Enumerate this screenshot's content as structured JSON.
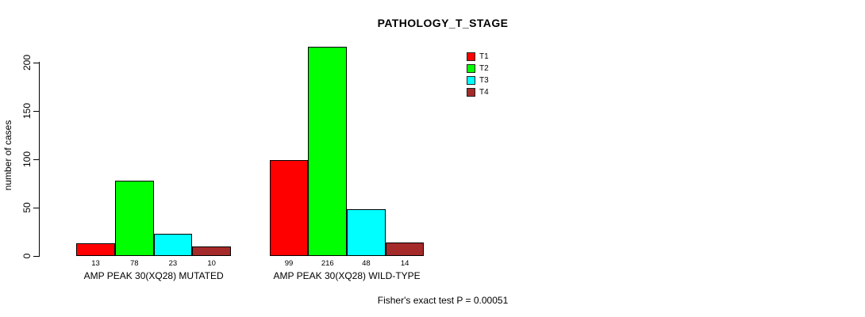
{
  "chart_data": {
    "type": "bar",
    "title": "PATHOLOGY_T_STAGE",
    "ylabel": "number of cases",
    "xlabel": "",
    "ylim": [
      0,
      216
    ],
    "yticks": [
      0,
      50,
      100,
      150,
      200
    ],
    "grid": false,
    "legend_position": "top-right",
    "categories": [
      "AMP PEAK 30(XQ28) MUTATED",
      "AMP PEAK 30(XQ28) WILD-TYPE"
    ],
    "series": [
      {
        "name": "T1",
        "color": "#FF0000",
        "values": [
          13,
          99
        ]
      },
      {
        "name": "T2",
        "color": "#00FF00",
        "values": [
          78,
          216
        ]
      },
      {
        "name": "T3",
        "color": "#00FFFF",
        "values": [
          23,
          48
        ]
      },
      {
        "name": "T4",
        "color": "#A52A2A",
        "values": [
          10,
          14
        ]
      }
    ],
    "bar_value_labels": [
      [
        13,
        78,
        23,
        10
      ],
      [
        99,
        216,
        48,
        14
      ]
    ],
    "annotation": "Fisher's exact test P = 0.00051"
  }
}
